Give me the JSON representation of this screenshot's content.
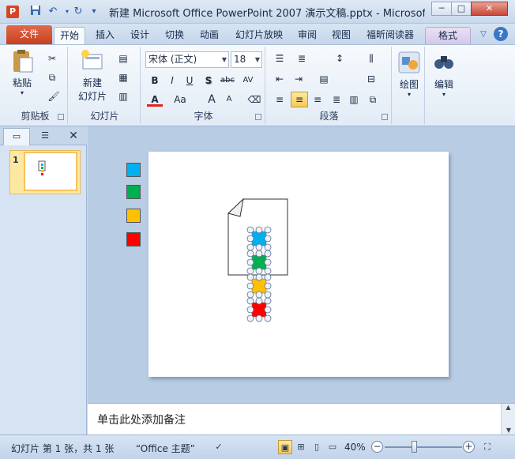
{
  "window": {
    "title": "新建 Microsoft Office PowerPoint 2007 演示文稿.pptx - Microsoft",
    "app_icon_letter": "P",
    "minimize_glyph": "─",
    "maximize_glyph": "□",
    "close_glyph": "✕"
  },
  "quick_access": [
    "save-icon",
    "undo-icon",
    "redo-icon",
    "customize-icon"
  ],
  "tabs": {
    "file": "文件",
    "items": [
      "开始",
      "插入",
      "设计",
      "切换",
      "动画",
      "幻灯片放映",
      "审阅",
      "视图",
      "福昕阅读器"
    ],
    "active": "开始",
    "contextual": "格式",
    "help": "?"
  },
  "ribbon": {
    "clipboard": {
      "label": "剪贴板",
      "paste": "粘贴"
    },
    "slides": {
      "label": "幻灯片",
      "new_slide_line1": "新建",
      "new_slide_line2": "幻灯片"
    },
    "font": {
      "label": "字体",
      "font_name": "宋体 (正文)",
      "font_size": "18",
      "bold": "B",
      "italic": "I",
      "underline": "U",
      "shadow": "S",
      "strike": "abc",
      "spacing": "AV",
      "color": "A",
      "case": "Aa",
      "grow": "A",
      "shrink": "A"
    },
    "paragraph": {
      "label": "段落"
    },
    "drawing": {
      "label": "绘图"
    },
    "editing": {
      "label": "编辑"
    },
    "colors": {
      "accent": "#2b5797",
      "file_tab": "#d24726",
      "pressed": "#f8c857"
    }
  },
  "pane": {
    "slide_number": "1",
    "close": "✕"
  },
  "slide": {
    "swatches": [
      "#00b0f0",
      "#00b050",
      "#ffc000",
      "#ff0000"
    ],
    "shape_colors": [
      "#00b0f0",
      "#00b050",
      "#ffc000",
      "#ff0000"
    ]
  },
  "notes": {
    "placeholder": "单击此处添加备注"
  },
  "status": {
    "slide_info": "幻灯片 第 1 张，共 1 张",
    "theme": "“Office 主题”",
    "zoom": "40%",
    "zoom_level_percent": 40
  }
}
